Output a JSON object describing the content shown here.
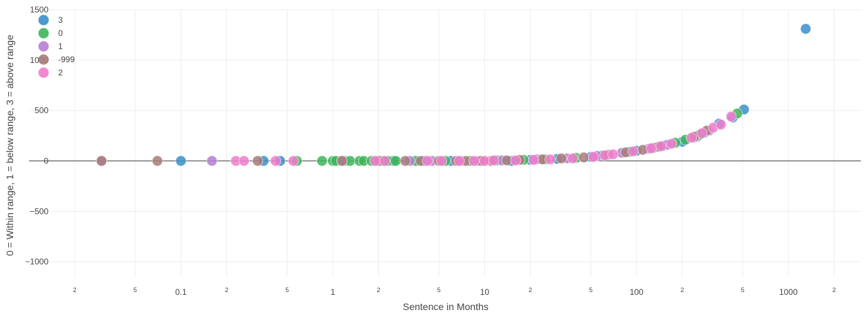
{
  "chart_data": {
    "type": "scatter",
    "xlabel": "Sentence in Months",
    "ylabel": "0 = Within range, 1 = below range, 3 = above range",
    "x_scale": "log",
    "xlim": [
      0.01,
      3000
    ],
    "ylim": [
      -1150,
      1500
    ],
    "x_ticks": [
      {
        "value": 0.02,
        "label": "2"
      },
      {
        "value": 0.05,
        "label": "5"
      },
      {
        "value": 0.1,
        "label": "0.1"
      },
      {
        "value": 0.2,
        "label": "2"
      },
      {
        "value": 0.5,
        "label": "5"
      },
      {
        "value": 1,
        "label": "1"
      },
      {
        "value": 2,
        "label": "2"
      },
      {
        "value": 5,
        "label": "5"
      },
      {
        "value": 10,
        "label": "10"
      },
      {
        "value": 20,
        "label": "2"
      },
      {
        "value": 50,
        "label": "5"
      },
      {
        "value": 100,
        "label": "100"
      },
      {
        "value": 200,
        "label": "2"
      },
      {
        "value": 500,
        "label": "5"
      },
      {
        "value": 1000,
        "label": "1000"
      },
      {
        "value": 2000,
        "label": "2"
      }
    ],
    "y_ticks": [
      {
        "value": 1500,
        "label": "1500"
      },
      {
        "value": 1000,
        "label": "1000"
      },
      {
        "value": 500,
        "label": "500"
      },
      {
        "value": 0,
        "label": "0"
      },
      {
        "value": -500,
        "label": "−500"
      },
      {
        "value": -1000,
        "label": "−1000"
      }
    ],
    "grid": true,
    "legend_position": "top-left",
    "series": [
      {
        "name": "3",
        "color": "#3a8fc9",
        "points": [
          [
            0.1,
            0
          ],
          [
            0.35,
            0
          ],
          [
            0.45,
            0
          ],
          [
            2.5,
            0
          ],
          [
            4,
            0
          ],
          [
            6,
            0
          ],
          [
            15,
            0
          ],
          [
            20,
            10
          ],
          [
            30,
            20
          ],
          [
            50,
            40
          ],
          [
            100,
            100
          ],
          [
            150,
            150
          ],
          [
            200,
            190
          ],
          [
            250,
            240
          ],
          [
            280,
            280
          ],
          [
            350,
            370
          ],
          [
            430,
            430
          ],
          [
            510,
            510
          ],
          [
            1300,
            1310
          ]
        ]
      },
      {
        "name": "0",
        "color": "#3cb55a",
        "points": [
          [
            0.58,
            0
          ],
          [
            0.85,
            0
          ],
          [
            1.0,
            0
          ],
          [
            1.05,
            0
          ],
          [
            1.2,
            0
          ],
          [
            1.3,
            0
          ],
          [
            1.5,
            0
          ],
          [
            1.6,
            0
          ],
          [
            1.8,
            0
          ],
          [
            2.1,
            0
          ],
          [
            2.3,
            0
          ],
          [
            2.6,
            0
          ],
          [
            3.5,
            0
          ],
          [
            5.5,
            0
          ],
          [
            8,
            0
          ],
          [
            12,
            5
          ],
          [
            18,
            10
          ],
          [
            25,
            15
          ],
          [
            40,
            30
          ],
          [
            60,
            55
          ],
          [
            90,
            90
          ],
          [
            130,
            130
          ],
          [
            180,
            180
          ],
          [
            210,
            210
          ],
          [
            260,
            260
          ],
          [
            460,
            470
          ]
        ]
      },
      {
        "name": "1",
        "color": "#b57fd4",
        "points": [
          [
            0.03,
            0
          ],
          [
            0.16,
            0
          ],
          [
            1.15,
            0
          ],
          [
            3.2,
            0
          ],
          [
            4.5,
            0
          ],
          [
            7,
            0
          ],
          [
            9,
            0
          ],
          [
            13,
            5
          ],
          [
            22,
            15
          ],
          [
            35,
            25
          ],
          [
            55,
            50
          ],
          [
            80,
            80
          ],
          [
            120,
            120
          ],
          [
            160,
            160
          ],
          [
            240,
            230
          ],
          [
            300,
            300
          ]
        ]
      },
      {
        "name": "-999",
        "color": "#a87d7a",
        "points": [
          [
            0.03,
            0
          ],
          [
            0.07,
            0
          ],
          [
            0.32,
            0
          ],
          [
            1.15,
            0
          ],
          [
            2.0,
            0
          ],
          [
            3.0,
            0
          ],
          [
            3.8,
            0
          ],
          [
            5.0,
            0
          ],
          [
            6.5,
            0
          ],
          [
            7.5,
            0
          ],
          [
            9.5,
            0
          ],
          [
            11,
            0
          ],
          [
            14,
            5
          ],
          [
            17,
            10
          ],
          [
            24,
            15
          ],
          [
            32,
            25
          ],
          [
            45,
            35
          ],
          [
            65,
            60
          ],
          [
            85,
            85
          ],
          [
            110,
            110
          ],
          [
            140,
            140
          ],
          [
            240,
            240
          ],
          [
            290,
            300
          ]
        ]
      },
      {
        "name": "2",
        "color": "#f07ccc",
        "points": [
          [
            0.23,
            0
          ],
          [
            0.26,
            0
          ],
          [
            0.42,
            0
          ],
          [
            0.55,
            0
          ],
          [
            1.9,
            0
          ],
          [
            2.2,
            0
          ],
          [
            4.2,
            0
          ],
          [
            5.2,
            0
          ],
          [
            6.8,
            0
          ],
          [
            8.5,
            0
          ],
          [
            10,
            0
          ],
          [
            11.5,
            5
          ],
          [
            16,
            5
          ],
          [
            21,
            10
          ],
          [
            27,
            15
          ],
          [
            38,
            25
          ],
          [
            52,
            40
          ],
          [
            62,
            55
          ],
          [
            70,
            65
          ],
          [
            95,
            95
          ],
          [
            125,
            125
          ],
          [
            145,
            145
          ],
          [
            170,
            170
          ],
          [
            230,
            230
          ],
          [
            270,
            275
          ],
          [
            320,
            330
          ],
          [
            360,
            360
          ],
          [
            420,
            440
          ]
        ]
      }
    ]
  }
}
